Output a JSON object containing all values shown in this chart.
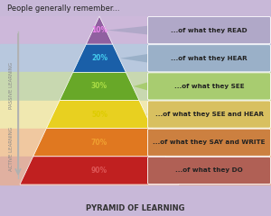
{
  "title_top": "People generally remember...",
  "title_bottom": "PYRAMID OF LEARNING",
  "passive_label": "PASSIVE LEARNING",
  "active_label": "ACTIVE LEARNING",
  "bg_color": "#c8b8d8",
  "band_bg_colors": [
    "#cdb8da",
    "#b8c8de",
    "#c8d8b0",
    "#f0e8b0",
    "#f0c8a0",
    "#e0b0a0"
  ],
  "layers": [
    {
      "pct": "10%",
      "label": "...of what they READ",
      "tri_color": "#9060a0",
      "pct_color": "#ee88ee",
      "box_color": "#b0a8c8"
    },
    {
      "pct": "20%",
      "label": "...of what they HEAR",
      "tri_color": "#1a5fa8",
      "pct_color": "#44ccee",
      "box_color": "#9ab0c8"
    },
    {
      "pct": "30%",
      "label": "...of what they SEE",
      "tri_color": "#68a828",
      "pct_color": "#aadd44",
      "box_color": "#a8cc70"
    },
    {
      "pct": "50%",
      "label": "...of what they SEE and HEAR",
      "tri_color": "#e8d020",
      "pct_color": "#ddcc00",
      "box_color": "#d8c060"
    },
    {
      "pct": "70%",
      "label": "...of what they SAY and WRITE",
      "tri_color": "#e07820",
      "pct_color": "#f0a030",
      "box_color": "#cc8040"
    },
    {
      "pct": "90%",
      "label": "...of what they DO",
      "tri_color": "#c02020",
      "pct_color": "#dd5555",
      "box_color": "#b06055"
    }
  ]
}
